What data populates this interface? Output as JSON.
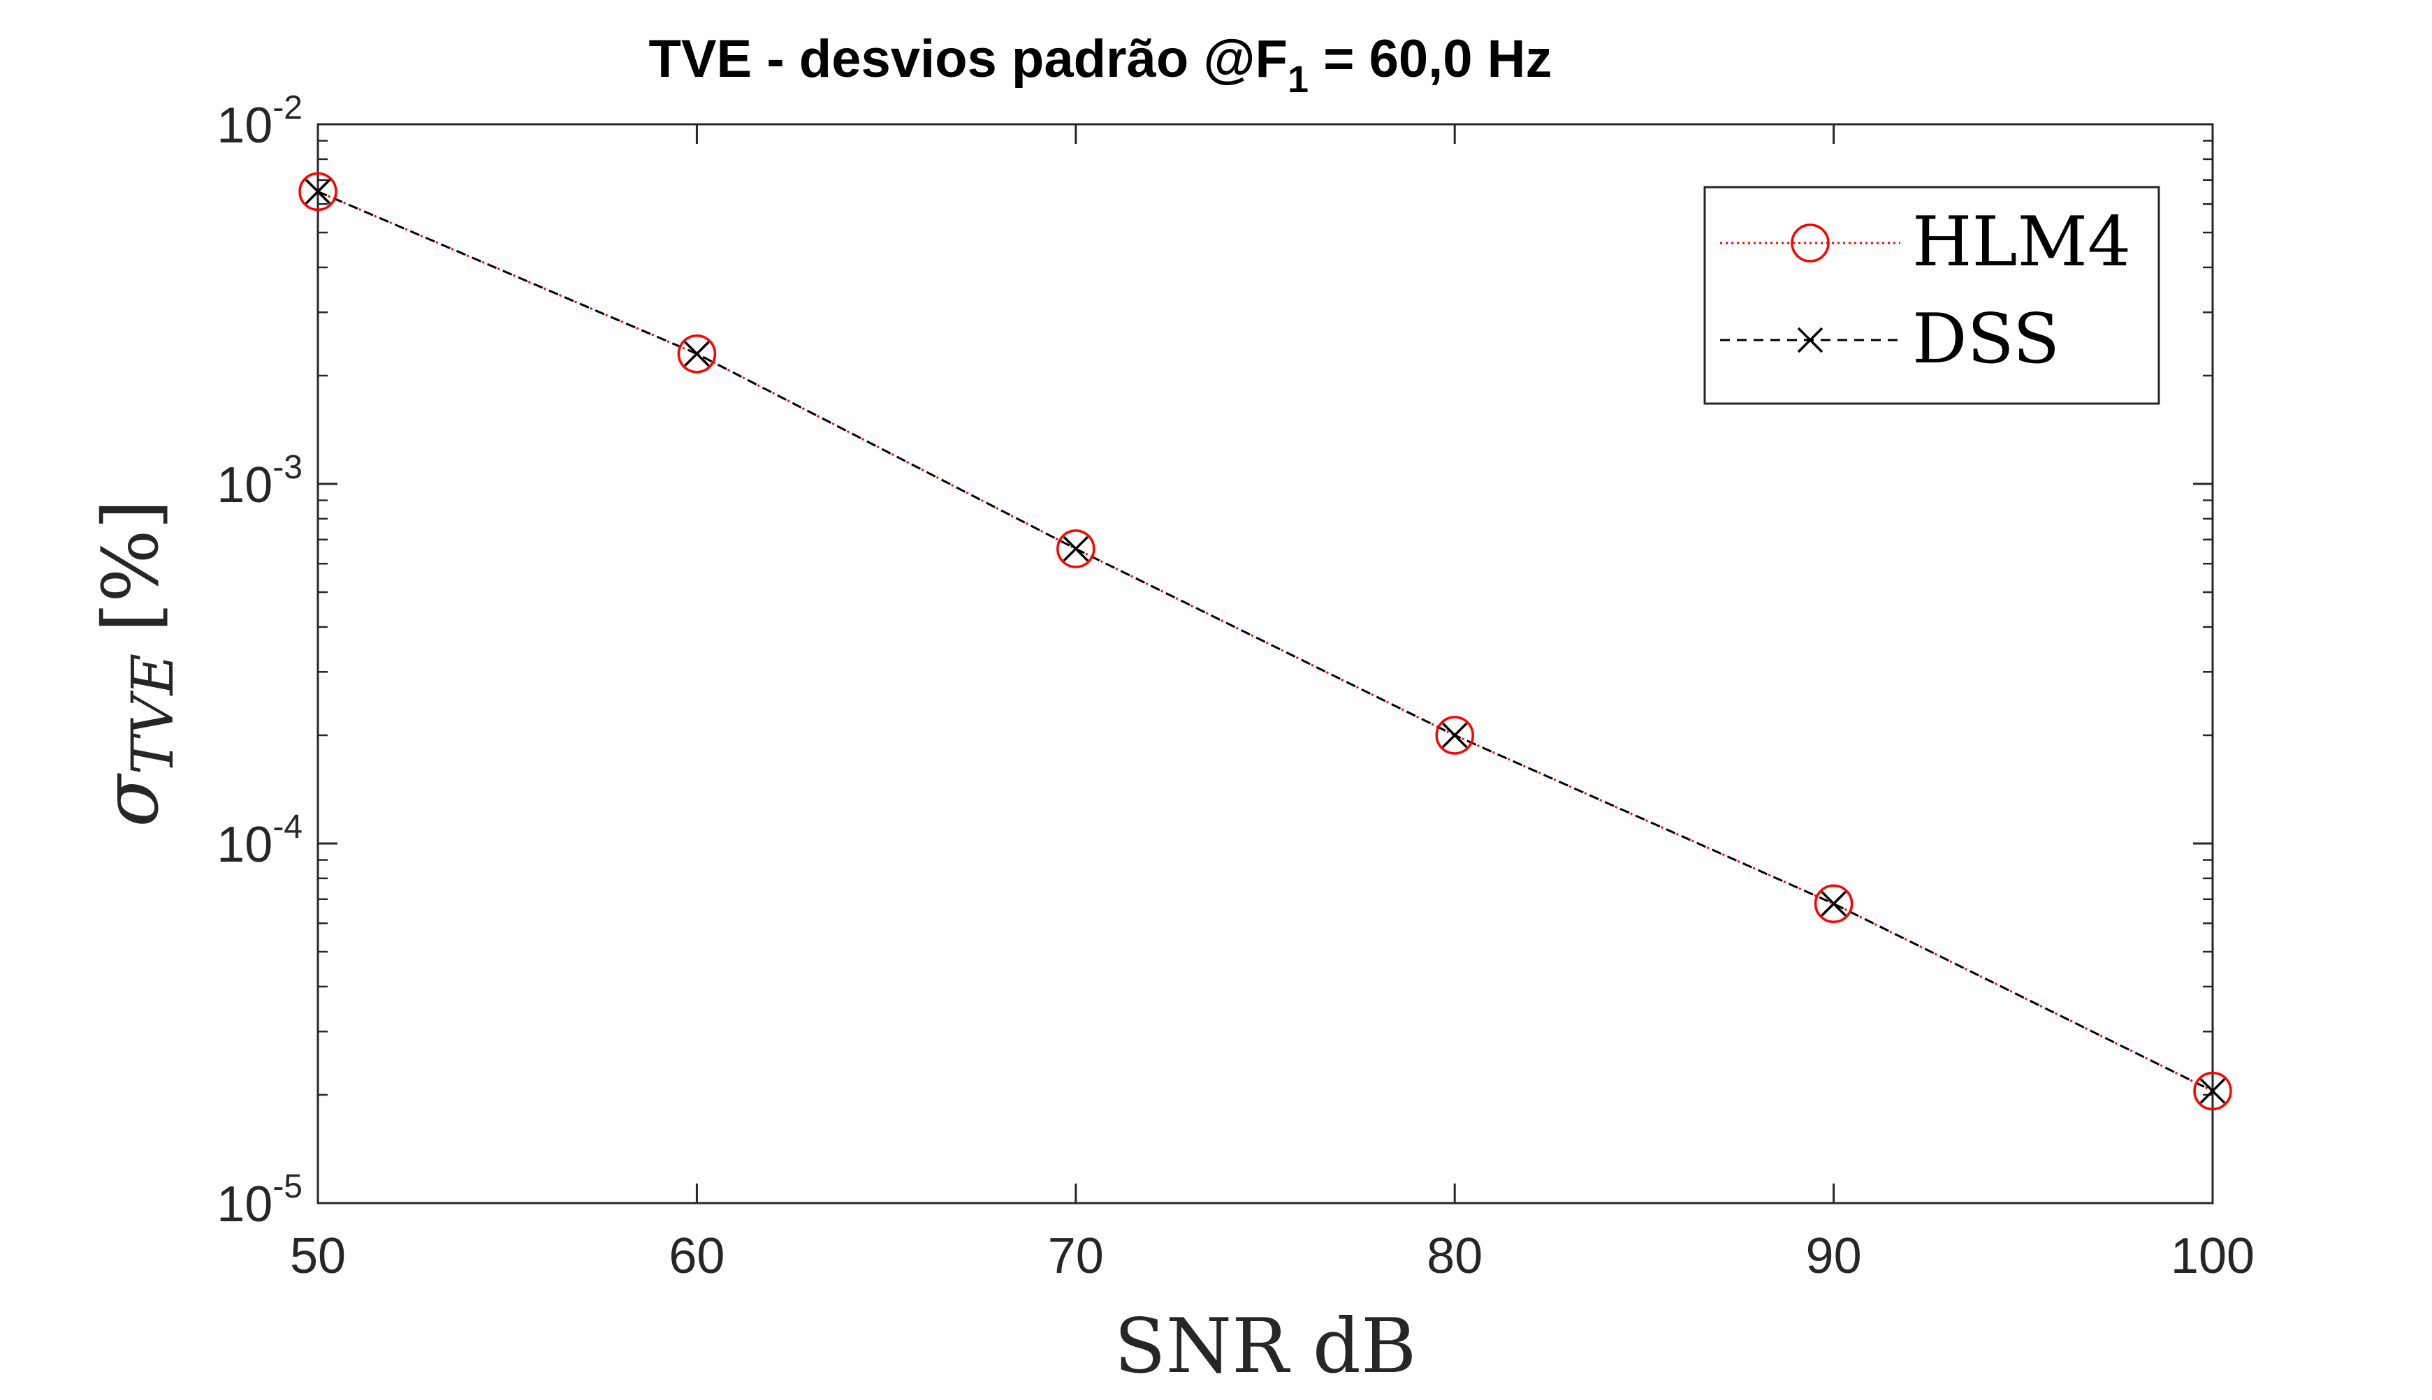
{
  "chart_data": {
    "type": "line",
    "title": {
      "main": "TVE - desvios padrão @F",
      "subscript": "1",
      "suffix": " = 60,0 Hz"
    },
    "xlabel": "SNR dB",
    "ylabel": {
      "symbol": "σ",
      "subscript": "TVE",
      "unit": "[%]"
    },
    "xlim": [
      50,
      100
    ],
    "ylim": [
      1e-05,
      0.01
    ],
    "yscale": "log",
    "x_ticks": [
      50,
      60,
      70,
      80,
      90,
      100
    ],
    "x_tick_labels": [
      "50",
      "60",
      "70",
      "80",
      "90",
      "100"
    ],
    "y_ticks": [
      {
        "value": 0.01,
        "base": "10",
        "exp": "-2"
      },
      {
        "value": 0.001,
        "base": "10",
        "exp": "-3"
      },
      {
        "value": 0.0001,
        "base": "10",
        "exp": "-4"
      },
      {
        "value": 1e-05,
        "base": "10",
        "exp": "-5"
      }
    ],
    "grid": false,
    "box": true,
    "legend_position": "top-right",
    "x": [
      50,
      60,
      70,
      80,
      90,
      100
    ],
    "series": [
      {
        "name": "HLM4",
        "values": [
          0.0065,
          0.0023,
          0.00066,
          0.0002,
          6.8e-05,
          2.05e-05
        ],
        "color": "#ff0000",
        "line_style": "dotted",
        "marker": "circle"
      },
      {
        "name": "DSS",
        "values": [
          0.0065,
          0.0023,
          0.00066,
          0.0002,
          6.8e-05,
          2.05e-05
        ],
        "color": "#000000",
        "line_style": "dashed",
        "marker": "x"
      }
    ]
  }
}
